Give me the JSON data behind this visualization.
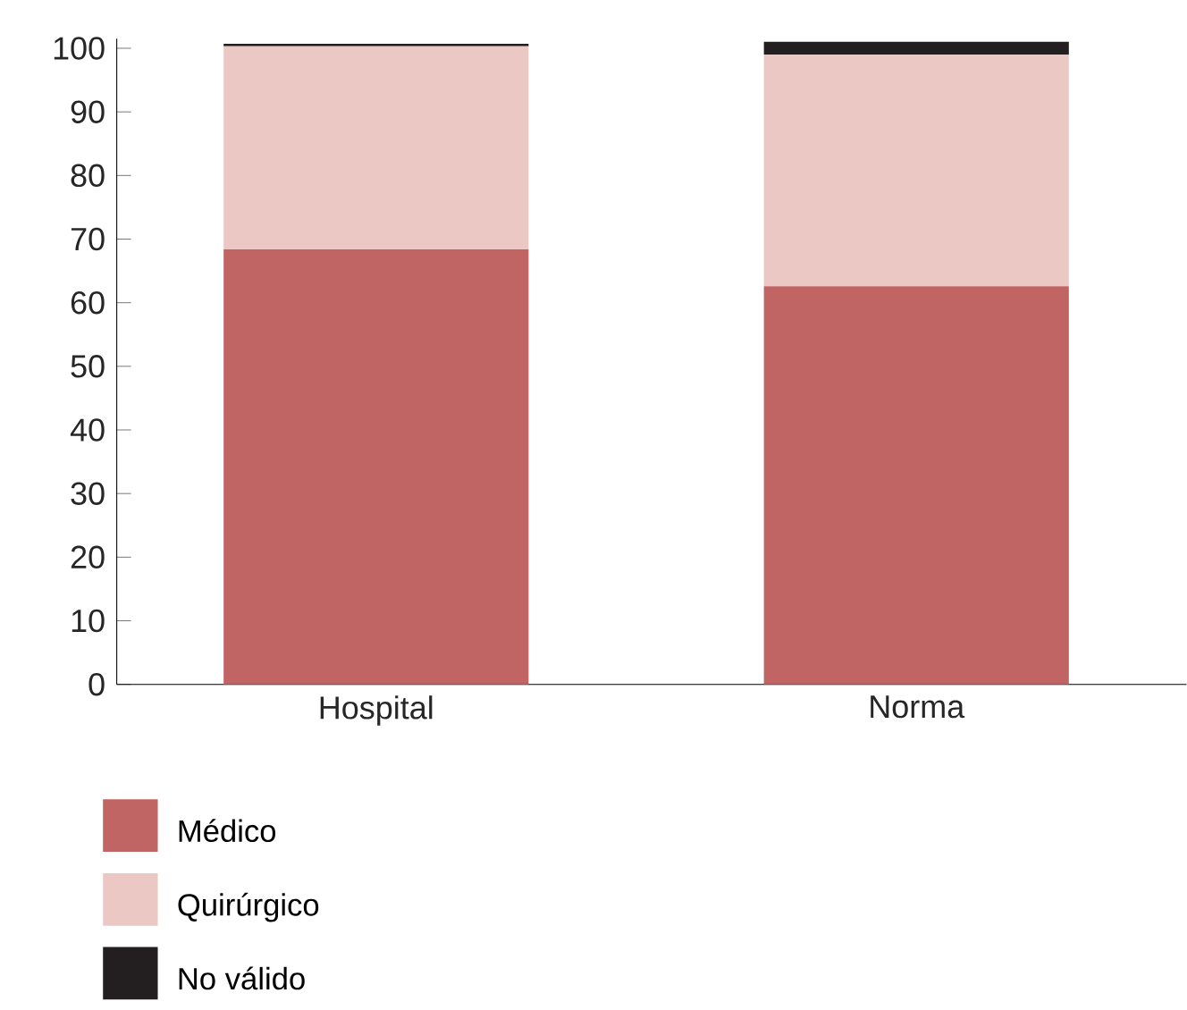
{
  "chart_data": {
    "type": "bar",
    "stacked": true,
    "categories": [
      "Hospital",
      "Norma"
    ],
    "series": [
      {
        "name": "Médico",
        "color": "#c06464",
        "values": [
          68.4,
          62.6
        ]
      },
      {
        "name": "Quirúrgico",
        "color": "#ebc8c3",
        "values": [
          31.9,
          36.4
        ]
      },
      {
        "name": "No válido",
        "color": "#231f20",
        "values": [
          0.4,
          2.0
        ]
      }
    ],
    "ylim": [
      0,
      101.5
    ],
    "yticks": [
      0,
      10,
      20,
      30,
      40,
      50,
      60,
      70,
      80,
      90,
      100
    ],
    "grid": false,
    "legend": "bottom left"
  }
}
